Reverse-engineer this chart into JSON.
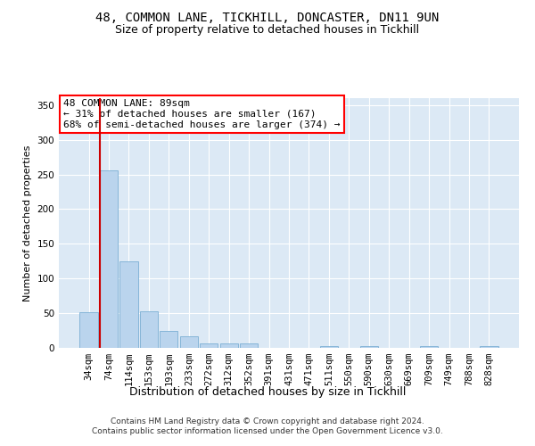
{
  "title_line1": "48, COMMON LANE, TICKHILL, DONCASTER, DN11 9UN",
  "title_line2": "Size of property relative to detached houses in Tickhill",
  "xlabel": "Distribution of detached houses by size in Tickhill",
  "ylabel": "Number of detached properties",
  "bar_categories": [
    "34sqm",
    "74sqm",
    "114sqm",
    "153sqm",
    "193sqm",
    "233sqm",
    "272sqm",
    "312sqm",
    "352sqm",
    "391sqm",
    "431sqm",
    "471sqm",
    "511sqm",
    "550sqm",
    "590sqm",
    "630sqm",
    "669sqm",
    "709sqm",
    "749sqm",
    "788sqm",
    "828sqm"
  ],
  "bar_values": [
    51,
    256,
    125,
    53,
    25,
    17,
    7,
    7,
    7,
    0,
    0,
    0,
    3,
    0,
    3,
    0,
    0,
    3,
    0,
    0,
    3
  ],
  "bar_color": "#bad4ed",
  "bar_edge_color": "#7aafd4",
  "vline_color": "#cc0000",
  "vline_x_index": 1,
  "annotation_text_line1": "48 COMMON LANE: 89sqm",
  "annotation_text_line2": "← 31% of detached houses are smaller (167)",
  "annotation_text_line3": "68% of semi-detached houses are larger (374) →",
  "annotation_box_facecolor": "white",
  "annotation_box_edgecolor": "red",
  "ylim": [
    0,
    360
  ],
  "yticks": [
    0,
    50,
    100,
    150,
    200,
    250,
    300,
    350
  ],
  "plot_bg_color": "#dce9f5",
  "grid_color": "white",
  "title_fontsize": 10,
  "subtitle_fontsize": 9,
  "ylabel_fontsize": 8,
  "xlabel_fontsize": 9,
  "tick_fontsize": 7.5,
  "annotation_fontsize": 8,
  "footer_fontsize": 6.5,
  "footer_line1": "Contains HM Land Registry data © Crown copyright and database right 2024.",
  "footer_line2": "Contains public sector information licensed under the Open Government Licence v3.0."
}
